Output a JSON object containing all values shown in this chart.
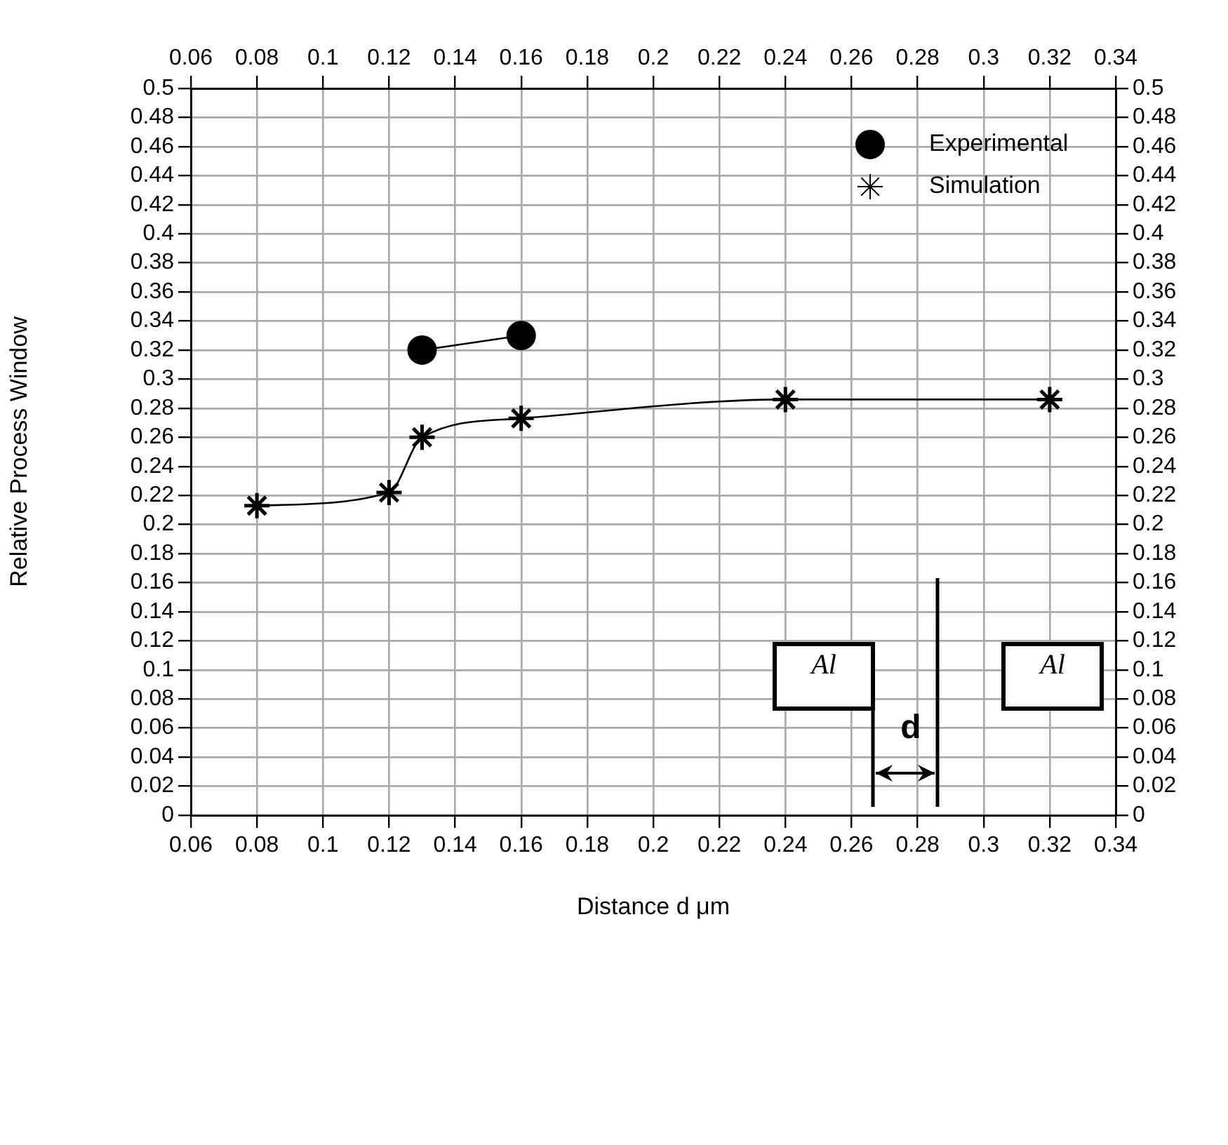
{
  "chart_data": {
    "type": "line",
    "xlabel": "Distance d μm",
    "ylabel": "Relative Process Window",
    "xlim": [
      0.06,
      0.34
    ],
    "xticks": [
      0.06,
      0.08,
      0.1,
      0.12,
      0.14,
      0.16,
      0.18,
      0.2,
      0.22,
      0.24,
      0.26,
      0.28,
      0.3,
      0.32,
      0.34
    ],
    "x2lim": [
      0.06,
      0.34
    ],
    "x2ticks": [
      0.06,
      0.08,
      0.1,
      0.12,
      0.14,
      0.16,
      0.18,
      0.2,
      0.22,
      0.24,
      0.26,
      0.28,
      0.3,
      0.32,
      0.34
    ],
    "ylim": [
      0,
      0.5
    ],
    "yticks": [
      0,
      0.02,
      0.04,
      0.06,
      0.08,
      0.1,
      0.12,
      0.14,
      0.16,
      0.18,
      0.2,
      0.22,
      0.24,
      0.26,
      0.28,
      0.3,
      0.32,
      0.34,
      0.36,
      0.38,
      0.4,
      0.42,
      0.44,
      0.46,
      0.48,
      0.5
    ],
    "y2lim": [
      0,
      0.5
    ],
    "y2ticks": [
      0,
      0.02,
      0.04,
      0.06,
      0.08,
      0.1,
      0.12,
      0.14,
      0.16,
      0.18,
      0.2,
      0.22,
      0.24,
      0.26,
      0.28,
      0.3,
      0.32,
      0.34,
      0.36,
      0.38,
      0.4,
      0.42,
      0.44,
      0.46,
      0.48,
      0.5
    ],
    "grid": true,
    "legend": "top right",
    "series": [
      {
        "name": "Experimental",
        "color": "#000000",
        "marker": "circle",
        "x": [
          0.13,
          0.16
        ],
        "values": [
          0.32,
          0.33
        ]
      },
      {
        "name": "Simulation",
        "color": "#000000",
        "marker": "cross",
        "x": [
          0.08,
          0.12,
          0.13,
          0.16,
          0.24,
          0.32
        ],
        "values": [
          0.213,
          0.222,
          0.26,
          0.273,
          0.286,
          0.286
        ]
      }
    ],
    "annotations": [
      "Al",
      "Al",
      "d"
    ]
  }
}
